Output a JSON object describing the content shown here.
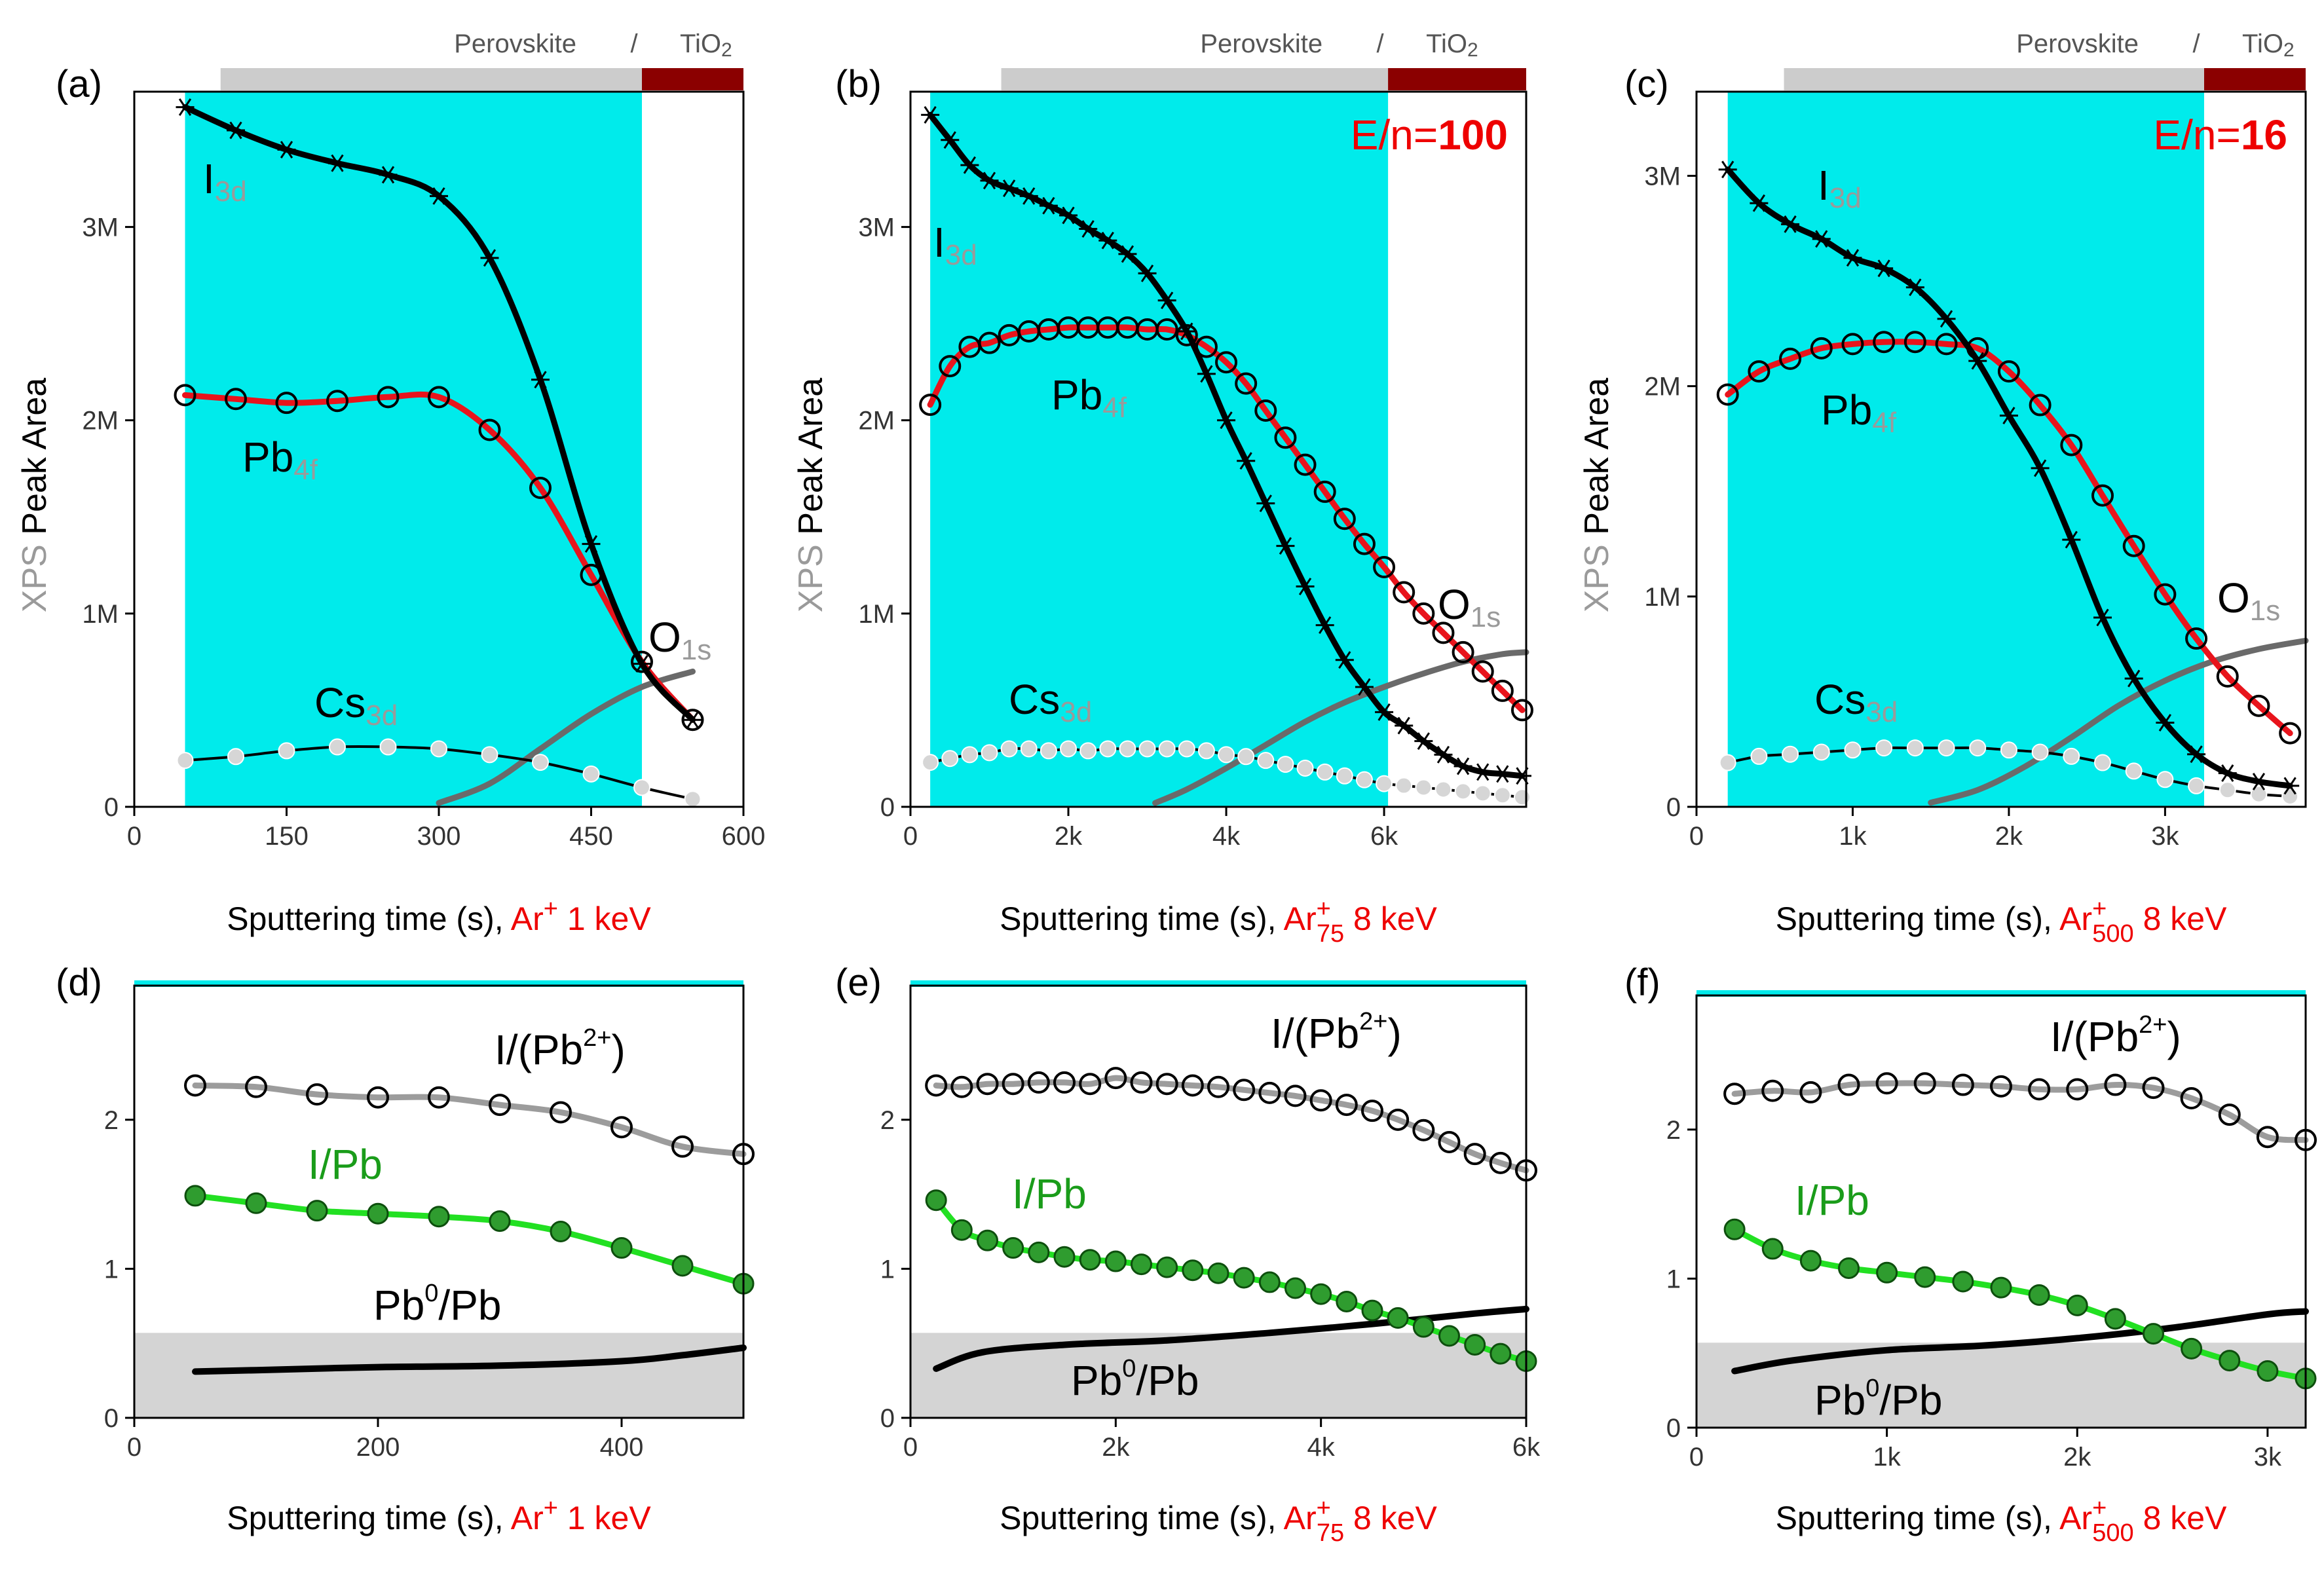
{
  "figure": {
    "colors": {
      "cyan_region": "#00ebeb",
      "perovskite_bar": "#cccccc",
      "tio2_bar": "#8b0000",
      "i3d": "#000000",
      "pb4f": "#e8141c",
      "o1s": "#6a6a6a",
      "cs3d": "#000000",
      "ratio_i_pb2": "#9c9c9c",
      "ratio_i_pb": "#22e022",
      "ratio_pb0": "#000000",
      "shade_gray": "#d4d4d4",
      "accent_red": "#ee0000",
      "label_gray": "#9a9a9a",
      "label_green": "#1a9c1a"
    },
    "layer_labels": {
      "perovskite": "Perovskite",
      "slash": "/",
      "tio2": "TiO",
      "tio2_sub": "2"
    },
    "ylabel": {
      "prefix": "XPS",
      "rest": " Peak Area"
    },
    "xlabel_prefix": "Sputtering time (s), ",
    "series_labels": {
      "i_main": "I",
      "i_sub": "3d",
      "pb_main": "Pb",
      "pb_sub": "4f",
      "o_main": "O",
      "o_sub": "1s",
      "cs_main": "Cs",
      "cs_sub": "3d",
      "ratio1_main": "I/(Pb",
      "ratio1_sup": "2+",
      "ratio1_end": ")",
      "ratio2": "I/Pb",
      "ratio3_main": "Pb",
      "ratio3_sup": "0",
      "ratio3_end": "/Pb"
    },
    "ion_labels": [
      {
        "main": "Ar",
        "sup": "+",
        "sub": "",
        "energy": " 1 keV"
      },
      {
        "main": "Ar",
        "sup": "+",
        "sub": "75",
        "energy": " 8 keV"
      },
      {
        "main": "Ar",
        "sup": "+",
        "sub": "500",
        "energy": " 8 keV"
      }
    ],
    "en_labels": [
      {
        "prefix": "",
        "value": ""
      },
      {
        "prefix": "E/n=",
        "value": "100"
      },
      {
        "prefix": "E/n=",
        "value": "16"
      }
    ]
  },
  "chart_data": [
    {
      "panel": "(a)",
      "type": "line",
      "ion": 0,
      "xlim": [
        0,
        600
      ],
      "ylim": [
        0,
        3700000
      ],
      "xticks": [
        0,
        150,
        300,
        450,
        600
      ],
      "xticklabels": [
        "0",
        "150",
        "300",
        "450",
        "600"
      ],
      "yticks": [
        0,
        1000000,
        2000000,
        3000000
      ],
      "yticklabels": [
        "0",
        "1M",
        "2M",
        "3M"
      ],
      "cyan_range": [
        50,
        500
      ],
      "perovskite_range": [
        85,
        500
      ],
      "tio2_range": [
        500,
        600
      ],
      "series": [
        {
          "name": "I3d",
          "x": [
            50,
            100,
            150,
            200,
            250,
            300,
            350,
            400,
            450,
            500,
            550
          ],
          "y": [
            3620000,
            3500000,
            3400000,
            3330000,
            3270000,
            3160000,
            2840000,
            2210000,
            1360000,
            740000,
            450000
          ]
        },
        {
          "name": "Pb4f",
          "x": [
            50,
            100,
            150,
            200,
            250,
            300,
            350,
            400,
            450,
            500,
            550
          ],
          "y": [
            2130000,
            2110000,
            2090000,
            2100000,
            2120000,
            2120000,
            1950000,
            1650000,
            1200000,
            750000,
            450000
          ]
        },
        {
          "name": "O1s",
          "x": [
            300,
            350,
            400,
            450,
            500,
            550
          ],
          "y": [
            20000,
            120000,
            300000,
            480000,
            620000,
            700000
          ]
        },
        {
          "name": "Cs3d",
          "x": [
            50,
            100,
            150,
            200,
            250,
            300,
            350,
            400,
            450,
            500,
            550
          ],
          "y": [
            240000,
            260000,
            290000,
            310000,
            310000,
            300000,
            270000,
            230000,
            170000,
            100000,
            40000
          ]
        }
      ]
    },
    {
      "panel": "(b)",
      "type": "line",
      "ion": 1,
      "xlim": [
        0,
        7800
      ],
      "ylim": [
        0,
        3700000
      ],
      "xticks": [
        0,
        2000,
        4000,
        6000
      ],
      "xticklabels": [
        "0",
        "2k",
        "4k",
        "6k"
      ],
      "yticks": [
        0,
        1000000,
        2000000,
        3000000
      ],
      "yticklabels": [
        "0",
        "1M",
        "2M",
        "3M"
      ],
      "cyan_range": [
        250,
        6050
      ],
      "perovskite_range": [
        1150,
        6050
      ],
      "tio2_range": [
        6050,
        7800
      ],
      "series": [
        {
          "name": "I3d",
          "x": [
            250,
            500,
            750,
            1000,
            1250,
            1500,
            1750,
            2000,
            2250,
            2500,
            2750,
            3000,
            3250,
            3500,
            3750,
            4000,
            4250,
            4500,
            4750,
            5000,
            5250,
            5500,
            5750,
            6000,
            6250,
            6500,
            6750,
            7000,
            7250,
            7500,
            7750
          ],
          "y": [
            3580000,
            3450000,
            3320000,
            3240000,
            3200000,
            3160000,
            3110000,
            3060000,
            2990000,
            2930000,
            2860000,
            2760000,
            2620000,
            2460000,
            2240000,
            2000000,
            1790000,
            1570000,
            1350000,
            1140000,
            940000,
            760000,
            620000,
            490000,
            420000,
            340000,
            270000,
            210000,
            180000,
            170000,
            160000
          ]
        },
        {
          "name": "Pb4f",
          "x": [
            250,
            500,
            750,
            1000,
            1250,
            1500,
            1750,
            2000,
            2250,
            2500,
            2750,
            3000,
            3250,
            3500,
            3750,
            4000,
            4250,
            4500,
            4750,
            5000,
            5250,
            5500,
            5750,
            6000,
            6250,
            6500,
            6750,
            7000,
            7250,
            7500,
            7750
          ],
          "y": [
            2080000,
            2280000,
            2380000,
            2400000,
            2440000,
            2460000,
            2470000,
            2480000,
            2480000,
            2480000,
            2480000,
            2470000,
            2470000,
            2440000,
            2380000,
            2300000,
            2190000,
            2050000,
            1910000,
            1770000,
            1630000,
            1490000,
            1360000,
            1240000,
            1110000,
            1000000,
            900000,
            800000,
            700000,
            600000,
            500000
          ]
        },
        {
          "name": "O1s",
          "x": [
            3100,
            3500,
            4000,
            4500,
            5000,
            5500,
            6000,
            6500,
            7000,
            7500,
            7800
          ],
          "y": [
            20000,
            90000,
            200000,
            320000,
            440000,
            540000,
            620000,
            690000,
            750000,
            790000,
            800000
          ]
        },
        {
          "name": "Cs3d",
          "x": [
            250,
            500,
            750,
            1000,
            1250,
            1500,
            1750,
            2000,
            2250,
            2500,
            2750,
            3000,
            3250,
            3500,
            3750,
            4000,
            4250,
            4500,
            4750,
            5000,
            5250,
            5500,
            5750,
            6000,
            6250,
            6500,
            6750,
            7000,
            7250,
            7500,
            7750
          ],
          "y": [
            230000,
            250000,
            270000,
            280000,
            300000,
            300000,
            290000,
            300000,
            290000,
            300000,
            300000,
            300000,
            300000,
            300000,
            290000,
            270000,
            260000,
            240000,
            220000,
            200000,
            180000,
            160000,
            140000,
            120000,
            110000,
            100000,
            90000,
            80000,
            70000,
            60000,
            50000
          ]
        }
      ]
    },
    {
      "panel": "(c)",
      "type": "line",
      "ion": 2,
      "xlim": [
        0,
        3900
      ],
      "ylim": [
        0,
        3400000
      ],
      "xticks": [
        0,
        1000,
        2000,
        3000
      ],
      "xticklabels": [
        "0",
        "1k",
        "2k",
        "3k"
      ],
      "yticks": [
        0,
        1000000,
        2000000,
        3000000
      ],
      "yticklabels": [
        "0",
        "1M",
        "2M",
        "3M"
      ],
      "cyan_range": [
        200,
        3250
      ],
      "perovskite_range": [
        560,
        3250
      ],
      "tio2_range": [
        3250,
        3900
      ],
      "series": [
        {
          "name": "I3d",
          "x": [
            200,
            400,
            600,
            800,
            1000,
            1200,
            1400,
            1600,
            1800,
            2000,
            2200,
            2400,
            2600,
            2800,
            3000,
            3200,
            3400,
            3600,
            3800
          ],
          "y": [
            3030000,
            2870000,
            2770000,
            2700000,
            2610000,
            2560000,
            2470000,
            2320000,
            2120000,
            1860000,
            1610000,
            1270000,
            900000,
            610000,
            400000,
            250000,
            160000,
            120000,
            100000
          ]
        },
        {
          "name": "Pb4f",
          "x": [
            200,
            400,
            600,
            800,
            1000,
            1200,
            1400,
            1600,
            1800,
            2000,
            2200,
            2400,
            2600,
            2800,
            3000,
            3200,
            3400,
            3600,
            3800
          ],
          "y": [
            1960000,
            2070000,
            2130000,
            2180000,
            2200000,
            2210000,
            2210000,
            2200000,
            2180000,
            2070000,
            1910000,
            1720000,
            1480000,
            1240000,
            1010000,
            800000,
            620000,
            480000,
            350000
          ]
        },
        {
          "name": "O1s",
          "x": [
            1500,
            1800,
            2100,
            2400,
            2700,
            3000,
            3300,
            3600,
            3900
          ],
          "y": [
            20000,
            80000,
            190000,
            330000,
            480000,
            600000,
            690000,
            750000,
            790000
          ]
        },
        {
          "name": "Cs3d",
          "x": [
            200,
            400,
            600,
            800,
            1000,
            1200,
            1400,
            1600,
            1800,
            2000,
            2200,
            2400,
            2600,
            2800,
            3000,
            3200,
            3400,
            3600,
            3800
          ],
          "y": [
            210000,
            240000,
            250000,
            260000,
            270000,
            280000,
            280000,
            280000,
            280000,
            270000,
            260000,
            240000,
            210000,
            170000,
            130000,
            100000,
            80000,
            60000,
            50000
          ]
        }
      ]
    },
    {
      "panel": "(d)",
      "type": "line",
      "ion": 0,
      "xlim": [
        0,
        500
      ],
      "ylim": [
        0,
        2.9
      ],
      "xticks": [
        0,
        200,
        400
      ],
      "xticklabels": [
        "0",
        "200",
        "400"
      ],
      "yticks": [
        0,
        1,
        2
      ],
      "yticklabels": [
        "0",
        "1",
        "2"
      ],
      "shade_y": 0.57,
      "series": [
        {
          "name": "I/(Pb2+)",
          "x": [
            50,
            100,
            150,
            200,
            250,
            300,
            350,
            400,
            450,
            500
          ],
          "y": [
            2.23,
            2.22,
            2.17,
            2.15,
            2.15,
            2.1,
            2.05,
            1.95,
            1.82,
            1.77
          ]
        },
        {
          "name": "I/Pb",
          "x": [
            50,
            100,
            150,
            200,
            250,
            300,
            350,
            400,
            450,
            500
          ],
          "y": [
            1.49,
            1.44,
            1.39,
            1.37,
            1.35,
            1.32,
            1.25,
            1.14,
            1.02,
            0.9
          ]
        },
        {
          "name": "Pb0/Pb",
          "x": [
            50,
            100,
            200,
            300,
            400,
            450,
            500
          ],
          "y": [
            0.31,
            0.32,
            0.34,
            0.35,
            0.38,
            0.42,
            0.47
          ]
        }
      ]
    },
    {
      "panel": "(e)",
      "type": "line",
      "ion": 1,
      "xlim": [
        0,
        6000
      ],
      "ylim": [
        0,
        2.9
      ],
      "xticks": [
        0,
        2000,
        4000,
        6000
      ],
      "xticklabels": [
        "0",
        "2k",
        "4k",
        "6k"
      ],
      "yticks": [
        0,
        1,
        2
      ],
      "yticklabels": [
        "0",
        "1",
        "2"
      ],
      "shade_y": 0.57,
      "series": [
        {
          "name": "I/(Pb2+)",
          "x": [
            250,
            500,
            750,
            1000,
            1250,
            1500,
            1750,
            2000,
            2250,
            2500,
            2750,
            3000,
            3250,
            3500,
            3750,
            4000,
            4250,
            4500,
            4750,
            5000,
            5250,
            5500,
            5750,
            6000
          ],
          "y": [
            2.23,
            2.22,
            2.24,
            2.24,
            2.25,
            2.25,
            2.24,
            2.28,
            2.25,
            2.24,
            2.23,
            2.22,
            2.2,
            2.18,
            2.16,
            2.13,
            2.1,
            2.06,
            2.0,
            1.93,
            1.85,
            1.77,
            1.71,
            1.66
          ]
        },
        {
          "name": "I/Pb",
          "x": [
            250,
            500,
            750,
            1000,
            1250,
            1500,
            1750,
            2000,
            2250,
            2500,
            2750,
            3000,
            3250,
            3500,
            3750,
            4000,
            4250,
            4500,
            4750,
            5000,
            5250,
            5500,
            5750,
            6000
          ],
          "y": [
            1.46,
            1.26,
            1.19,
            1.14,
            1.11,
            1.08,
            1.06,
            1.05,
            1.03,
            1.01,
            0.99,
            0.97,
            0.94,
            0.91,
            0.87,
            0.83,
            0.78,
            0.72,
            0.67,
            0.61,
            0.55,
            0.49,
            0.43,
            0.38
          ]
        },
        {
          "name": "Pb0/Pb",
          "x": [
            250,
            700,
            1500,
            2500,
            3500,
            4500,
            5500,
            6000
          ],
          "y": [
            0.33,
            0.44,
            0.49,
            0.52,
            0.57,
            0.63,
            0.7,
            0.73
          ]
        }
      ]
    },
    {
      "panel": "(f)",
      "type": "line",
      "ion": 2,
      "xlim": [
        0,
        3200
      ],
      "ylim": [
        0,
        2.9
      ],
      "xticks": [
        0,
        1000,
        2000,
        3000
      ],
      "xticklabels": [
        "0",
        "1k",
        "2k",
        "3k"
      ],
      "yticks": [
        0,
        1,
        2
      ],
      "yticklabels": [
        "0",
        "1",
        "2"
      ],
      "shade_y": 0.57,
      "series": [
        {
          "name": "I/(Pb2+)",
          "x": [
            200,
            400,
            600,
            800,
            1000,
            1200,
            1400,
            1600,
            1800,
            2000,
            2200,
            2400,
            2600,
            2800,
            3000,
            3200
          ],
          "y": [
            2.24,
            2.26,
            2.25,
            2.3,
            2.31,
            2.31,
            2.3,
            2.29,
            2.27,
            2.27,
            2.3,
            2.28,
            2.21,
            2.1,
            1.95,
            1.93
          ]
        },
        {
          "name": "I/Pb",
          "x": [
            200,
            400,
            600,
            800,
            1000,
            1200,
            1400,
            1600,
            1800,
            2000,
            2200,
            2400,
            2600,
            2800,
            3000,
            3200
          ],
          "y": [
            1.33,
            1.2,
            1.12,
            1.07,
            1.04,
            1.01,
            0.98,
            0.94,
            0.89,
            0.82,
            0.73,
            0.63,
            0.53,
            0.45,
            0.38,
            0.33
          ]
        },
        {
          "name": "Pb0/Pb",
          "x": [
            200,
            500,
            1000,
            1500,
            2000,
            2500,
            3000,
            3200
          ],
          "y": [
            0.38,
            0.45,
            0.52,
            0.55,
            0.6,
            0.67,
            0.76,
            0.78
          ]
        }
      ]
    }
  ]
}
